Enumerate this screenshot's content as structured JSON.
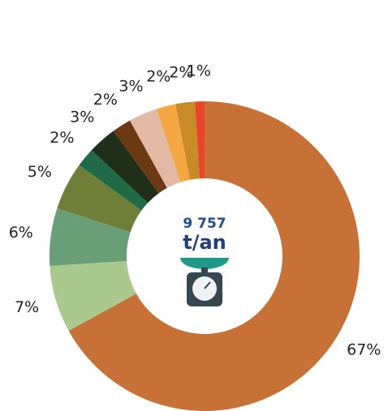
{
  "chart_data": {
    "type": "donut",
    "center_value": "9 757",
    "center_unit": "t/an",
    "values": [
      67,
      7,
      6,
      5,
      2,
      3,
      2,
      3,
      2,
      2,
      1
    ],
    "value_labels": [
      "67%",
      "7%",
      "6%",
      "5%",
      "2%",
      "3%",
      "2%",
      "3%",
      "2%",
      "2%",
      "1%"
    ],
    "colors": [
      "#c87137",
      "#a9c98f",
      "#6a9e77",
      "#6f7f37",
      "#1f6b48",
      "#1f2f1a",
      "#6b3a12",
      "#e2b9a3",
      "#f5a742",
      "#c98a28",
      "#e8452a"
    ]
  }
}
